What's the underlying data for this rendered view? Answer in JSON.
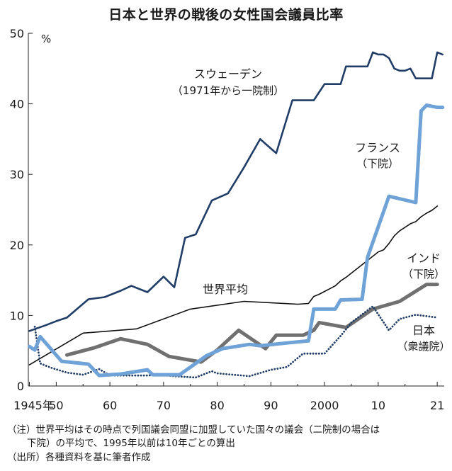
{
  "chart_data": {
    "type": "line",
    "title": "日本と世界の戦後の女性国会議員比率",
    "y_unit": "%",
    "ylim": [
      0,
      50
    ],
    "y_ticks": [
      0,
      10,
      20,
      30,
      40,
      50
    ],
    "xlim": [
      1945,
      2022
    ],
    "x_ticks": [
      {
        "x": 1945,
        "label": "1945年"
      },
      {
        "x": 1950,
        "label": "50"
      },
      {
        "x": 1960,
        "label": "60"
      },
      {
        "x": 1970,
        "label": "70"
      },
      {
        "x": 1980,
        "label": "80"
      },
      {
        "x": 1990,
        "label": "90"
      },
      {
        "x": 2000,
        "label": "2000"
      },
      {
        "x": 2010,
        "label": "10"
      },
      {
        "x": 2021,
        "label": "21"
      }
    ],
    "grid": false,
    "series": [
      {
        "key": "sweden",
        "name": "スウェーデン",
        "sublabel": "（1971年から一院制）",
        "color": "#1f3d66",
        "style": "solid",
        "points": [
          [
            1945,
            7.8
          ],
          [
            1948,
            8.6
          ],
          [
            1950,
            9.2
          ],
          [
            1952,
            9.7
          ],
          [
            1954,
            11
          ],
          [
            1956,
            12.3
          ],
          [
            1959,
            12.6
          ],
          [
            1962,
            13.5
          ],
          [
            1964,
            14.2
          ],
          [
            1967,
            13.3
          ],
          [
            1970,
            15.5
          ],
          [
            1972,
            14
          ],
          [
            1974,
            21
          ],
          [
            1976,
            21.5
          ],
          [
            1979,
            26.3
          ],
          [
            1982,
            27.3
          ],
          [
            1985,
            31
          ],
          [
            1988,
            35
          ],
          [
            1991,
            33
          ],
          [
            1994,
            40.5
          ],
          [
            1998,
            40.5
          ],
          [
            2000,
            42.8
          ],
          [
            2003,
            42.8
          ],
          [
            2004,
            45.3
          ],
          [
            2008,
            45.3
          ],
          [
            2009,
            47.3
          ],
          [
            2010,
            47
          ],
          [
            2011,
            47
          ],
          [
            2012,
            46.5
          ],
          [
            2013,
            45
          ],
          [
            2014,
            44.7
          ],
          [
            2015,
            44.7
          ],
          [
            2016,
            45
          ],
          [
            2017,
            43.6
          ],
          [
            2019,
            43.6
          ],
          [
            2020,
            43.6
          ],
          [
            2021,
            47.3
          ],
          [
            2022,
            47
          ]
        ]
      },
      {
        "key": "france",
        "name": "フランス",
        "sublabel": "（下院）",
        "color": "#6fa2d6",
        "style": "thick",
        "points": [
          [
            1945,
            5.6
          ],
          [
            1946,
            5.1
          ],
          [
            1947,
            7
          ],
          [
            1951,
            3.5
          ],
          [
            1956,
            3.1
          ],
          [
            1958,
            1.5
          ],
          [
            1962,
            1.7
          ],
          [
            1967,
            2.3
          ],
          [
            1968,
            1.6
          ],
          [
            1973,
            1.6
          ],
          [
            1978,
            4.3
          ],
          [
            1981,
            5.3
          ],
          [
            1986,
            5.9
          ],
          [
            1988,
            5.7
          ],
          [
            1993,
            6.1
          ],
          [
            1997,
            6.4
          ],
          [
            1998,
            10.9
          ],
          [
            2002,
            10.9
          ],
          [
            2003,
            12.2
          ],
          [
            2007,
            12.3
          ],
          [
            2008,
            18.2
          ],
          [
            2012,
            26.9
          ],
          [
            2017,
            26
          ],
          [
            2018,
            39
          ],
          [
            2019,
            39.8
          ],
          [
            2021,
            39.5
          ],
          [
            2022,
            39.5
          ]
        ]
      },
      {
        "key": "world",
        "name": "世界平均",
        "color": "#111111",
        "style": "thin",
        "points": [
          [
            1945,
            3
          ],
          [
            1955,
            7.5
          ],
          [
            1965,
            8.1
          ],
          [
            1975,
            10.9
          ],
          [
            1985,
            12
          ],
          [
            1995,
            11.6
          ],
          [
            1997,
            11.7
          ],
          [
            1998,
            12.7
          ],
          [
            1999,
            13
          ],
          [
            2000,
            13.4
          ],
          [
            2001,
            13.8
          ],
          [
            2002,
            14.2
          ],
          [
            2003,
            14.9
          ],
          [
            2004,
            15.4
          ],
          [
            2005,
            16
          ],
          [
            2006,
            16.6
          ],
          [
            2007,
            17.2
          ],
          [
            2008,
            17.8
          ],
          [
            2009,
            18.4
          ],
          [
            2010,
            19
          ],
          [
            2011,
            19.3
          ],
          [
            2012,
            20.2
          ],
          [
            2013,
            21.3
          ],
          [
            2014,
            22
          ],
          [
            2015,
            22.5
          ],
          [
            2016,
            23
          ],
          [
            2017,
            23.3
          ],
          [
            2018,
            24
          ],
          [
            2019,
            24.5
          ],
          [
            2020,
            24.9
          ],
          [
            2021,
            25.5
          ]
        ]
      },
      {
        "key": "india",
        "name": "インド",
        "sublabel": "（下院）",
        "color": "#707070",
        "style": "thick",
        "points": [
          [
            1952,
            4.4
          ],
          [
            1957,
            5.4
          ],
          [
            1962,
            6.7
          ],
          [
            1967,
            5.9
          ],
          [
            1971,
            4.2
          ],
          [
            1977,
            3.4
          ],
          [
            1980,
            5.1
          ],
          [
            1984,
            7.9
          ],
          [
            1989,
            5.3
          ],
          [
            1991,
            7.2
          ],
          [
            1996,
            7.2
          ],
          [
            1998,
            7.9
          ],
          [
            1999,
            9
          ],
          [
            2004,
            8.3
          ],
          [
            2009,
            10.9
          ],
          [
            2014,
            12
          ],
          [
            2019,
            14.4
          ],
          [
            2021,
            14.4
          ]
        ]
      },
      {
        "key": "japan",
        "name": "日本",
        "sublabel": "（衆議院）",
        "color": "#1f3d66",
        "style": "dotted",
        "points": [
          [
            1946,
            8.4
          ],
          [
            1947,
            3.2
          ],
          [
            1949,
            2.6
          ],
          [
            1952,
            1.9
          ],
          [
            1955,
            1.6
          ],
          [
            1958,
            2.4
          ],
          [
            1960,
            1.5
          ],
          [
            1963,
            1.5
          ],
          [
            1967,
            1.5
          ],
          [
            1969,
            1.6
          ],
          [
            1972,
            1.4
          ],
          [
            1976,
            1.2
          ],
          [
            1979,
            2.1
          ],
          [
            1980,
            1.8
          ],
          [
            1983,
            1.6
          ],
          [
            1986,
            1.4
          ],
          [
            1990,
            2.3
          ],
          [
            1993,
            2.7
          ],
          [
            1996,
            4.6
          ],
          [
            2000,
            4.6
          ],
          [
            2003,
            7.1
          ],
          [
            2005,
            9
          ],
          [
            2009,
            11.3
          ],
          [
            2012,
            7.9
          ],
          [
            2014,
            9.5
          ],
          [
            2017,
            10.1
          ],
          [
            2021,
            9.7
          ]
        ]
      }
    ]
  },
  "notes": {
    "note1": "（注）世界平均はその時点で列国議会同盟に加盟していた国々の議会（二院制の場合は",
    "note2": "下院）の平均で、1995年以前は10年ごとの算出",
    "source": "（出所）各種資料を基に筆者作成"
  }
}
